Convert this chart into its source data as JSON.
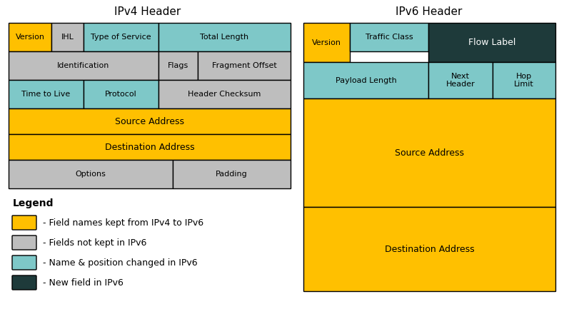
{
  "title_ipv4": "IPv4 Header",
  "title_ipv6": "IPv6 Header",
  "color_yellow": "#FFC000",
  "color_gray": "#BEBEBE",
  "color_teal": "#7EC8C8",
  "color_dark": "#1E3A3A",
  "color_white": "#FFFFFF",
  "color_black": "#000000",
  "legend_items": [
    {
      "color": "#FFC000",
      "text": "- Field names kept from IPv4 to IPv6"
    },
    {
      "color": "#BEBEBE",
      "text": "- Fields not kept in IPv6"
    },
    {
      "color": "#7EC8C8",
      "text": "- Name & position changed in IPv6"
    },
    {
      "color": "#1E3A3A",
      "text": "- New field in IPv6"
    }
  ],
  "legend_title": "Legend"
}
